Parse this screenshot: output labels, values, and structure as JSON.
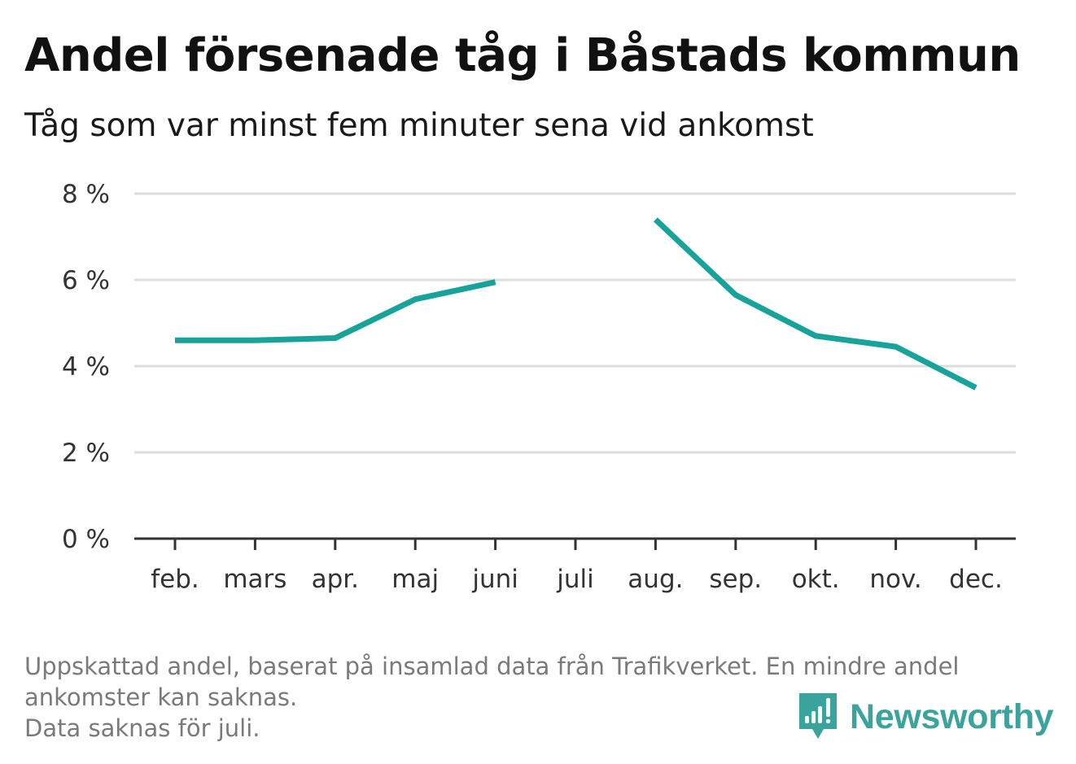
{
  "title": "Andel försenade tåg i Båstads kommun",
  "subtitle": "Tåg som var minst fem minuter sena vid ankomst",
  "footnote": {
    "line1": "Uppskattad andel, baserat på insamlad data från Trafikverket. En mindre andel",
    "line2": "ankomster kan saknas.",
    "line3": "Data saknas för juli."
  },
  "logo": {
    "text": "Newsworthy",
    "icon": "newsworthy-chart-icon"
  },
  "colors": {
    "line": "#17a39a",
    "grid": "#dddddd",
    "axis": "#333333",
    "logo": "#3aa39c"
  },
  "chart_data": {
    "type": "line",
    "categories": [
      "feb.",
      "mars",
      "apr.",
      "maj",
      "juni",
      "juli",
      "aug.",
      "sep.",
      "okt.",
      "nov.",
      "dec."
    ],
    "series": [
      {
        "values": [
          4.6,
          4.6,
          4.65,
          5.55,
          5.95,
          null,
          7.4,
          5.65,
          4.7,
          4.45,
          3.5
        ]
      }
    ],
    "y_ticks": [
      "0 %",
      "2 %",
      "4 %",
      "6 %",
      "8 %"
    ],
    "ylim": [
      0,
      8
    ],
    "grid": true,
    "missing": [
      "juli"
    ]
  }
}
